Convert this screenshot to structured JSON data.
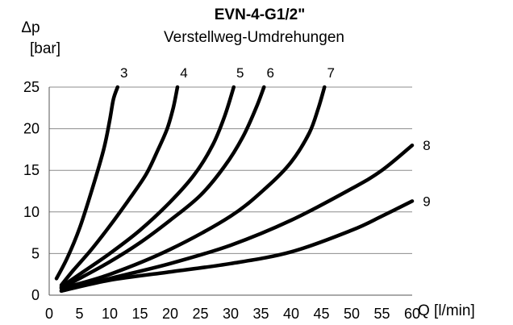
{
  "chart_data": {
    "type": "line",
    "title": "EVN-4-G1/2\"",
    "subtitle": "Verstellweg-Umdrehungen",
    "ylabel_line1": "Δp",
    "ylabel_line2": "[bar]",
    "xlabel": "Q [l/min]",
    "xlim": [
      0,
      60
    ],
    "ylim": [
      0,
      25
    ],
    "xticks": [
      0,
      5,
      10,
      15,
      20,
      25,
      30,
      35,
      40,
      45,
      50,
      55,
      60
    ],
    "yticks": [
      0,
      5,
      10,
      15,
      20,
      25
    ],
    "grid": "horizontal",
    "legend": "none",
    "line_color": "#000000",
    "series": [
      {
        "name": "3",
        "x": [
          1.2,
          3,
          5,
          7,
          9,
          10,
          10.6,
          11.3
        ],
        "y": [
          2,
          4.5,
          8,
          12.5,
          17.5,
          21,
          23.5,
          25
        ]
      },
      {
        "name": "4",
        "x": [
          2,
          4,
          7,
          10,
          13,
          16,
          18,
          19.5,
          20.5,
          21.2
        ],
        "y": [
          1.2,
          3,
          5.5,
          8.3,
          11.3,
          14.5,
          17.5,
          20,
          22.5,
          25
        ]
      },
      {
        "name": "5",
        "x": [
          2,
          5,
          10,
          15,
          20,
          24,
          27,
          29,
          30.5
        ],
        "y": [
          1,
          2.5,
          5,
          7.8,
          11.2,
          14.5,
          18,
          21.5,
          25
        ]
      },
      {
        "name": "6",
        "x": [
          2,
          5,
          10,
          15,
          20,
          25,
          29,
          32,
          34.2,
          35.5
        ],
        "y": [
          0.9,
          2,
          4,
          6.3,
          9,
          12,
          15.5,
          19,
          22.5,
          25
        ]
      },
      {
        "name": "7",
        "x": [
          2,
          10,
          20,
          30,
          36,
          40,
          43,
          44.5,
          45.5
        ],
        "y": [
          0.8,
          2.5,
          5.5,
          9.5,
          13,
          16,
          19.5,
          22.5,
          25
        ]
      },
      {
        "name": "8",
        "x": [
          2,
          10,
          20,
          30,
          40,
          50,
          55,
          60
        ],
        "y": [
          0.5,
          2,
          3.8,
          6,
          9,
          12.8,
          15,
          18
        ]
      },
      {
        "name": "9",
        "x": [
          2,
          10,
          20,
          30,
          40,
          50,
          55,
          60
        ],
        "y": [
          0.5,
          1.8,
          2.8,
          3.8,
          5.2,
          7.8,
          9.5,
          11.3
        ]
      }
    ]
  }
}
